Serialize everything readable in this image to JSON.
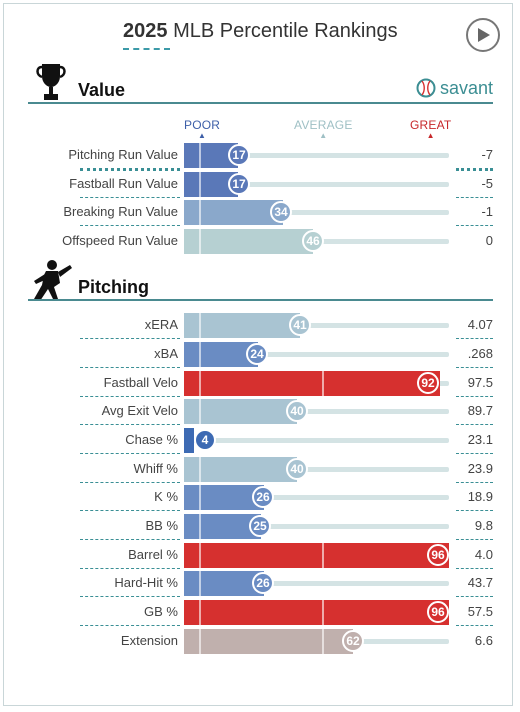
{
  "header": {
    "year": "2025",
    "title": "MLB Percentile Rankings"
  },
  "sections": {
    "value": {
      "title": "Value",
      "icon": "trophy-icon"
    },
    "pitching": {
      "title": "Pitching",
      "icon": "pitcher-icon"
    }
  },
  "brand": {
    "name": "savant",
    "icon": "baseball-icon"
  },
  "legend": {
    "poor": "POOR",
    "average": "AVERAGE",
    "great": "GREAT"
  },
  "colors": {
    "accent": "#3c8e93",
    "poor_dark": "#3d6ab3",
    "poor_mid": "#6c8fc3",
    "poor_light": "#8fabc9",
    "neutral_light": "#a9c6d1",
    "neutral_pale": "#b9d1d3",
    "great_red": "#d6302f",
    "warm_gray": "#c0b0ad"
  },
  "value_rows": [
    {
      "label": "Pitching Run Value",
      "pct": "17",
      "stat": "-7"
    },
    {
      "label": "Fastball Run Value",
      "pct": "17",
      "stat": "-5"
    },
    {
      "label": "Breaking Run Value",
      "pct": "34",
      "stat": "-1"
    },
    {
      "label": "Offspeed Run Value",
      "pct": "46",
      "stat": "0"
    }
  ],
  "pitching_rows": [
    {
      "label": "xERA",
      "pct": "41",
      "stat": "4.07"
    },
    {
      "label": "xBA",
      "pct": "24",
      "stat": ".268"
    },
    {
      "label": "Fastball Velo",
      "pct": "92",
      "stat": "97.5"
    },
    {
      "label": "Avg Exit Velo",
      "pct": "40",
      "stat": "89.7"
    },
    {
      "label": "Chase %",
      "pct": "4",
      "stat": "23.1"
    },
    {
      "label": "Whiff %",
      "pct": "40",
      "stat": "23.9"
    },
    {
      "label": "K %",
      "pct": "26",
      "stat": "18.9"
    },
    {
      "label": "BB %",
      "pct": "25",
      "stat": "9.8"
    },
    {
      "label": "Barrel %",
      "pct": "96",
      "stat": "4.0"
    },
    {
      "label": "Hard-Hit %",
      "pct": "26",
      "stat": "43.7"
    },
    {
      "label": "GB %",
      "pct": "96",
      "stat": "57.5"
    },
    {
      "label": "Extension",
      "pct": "62",
      "stat": "6.6"
    }
  ]
}
